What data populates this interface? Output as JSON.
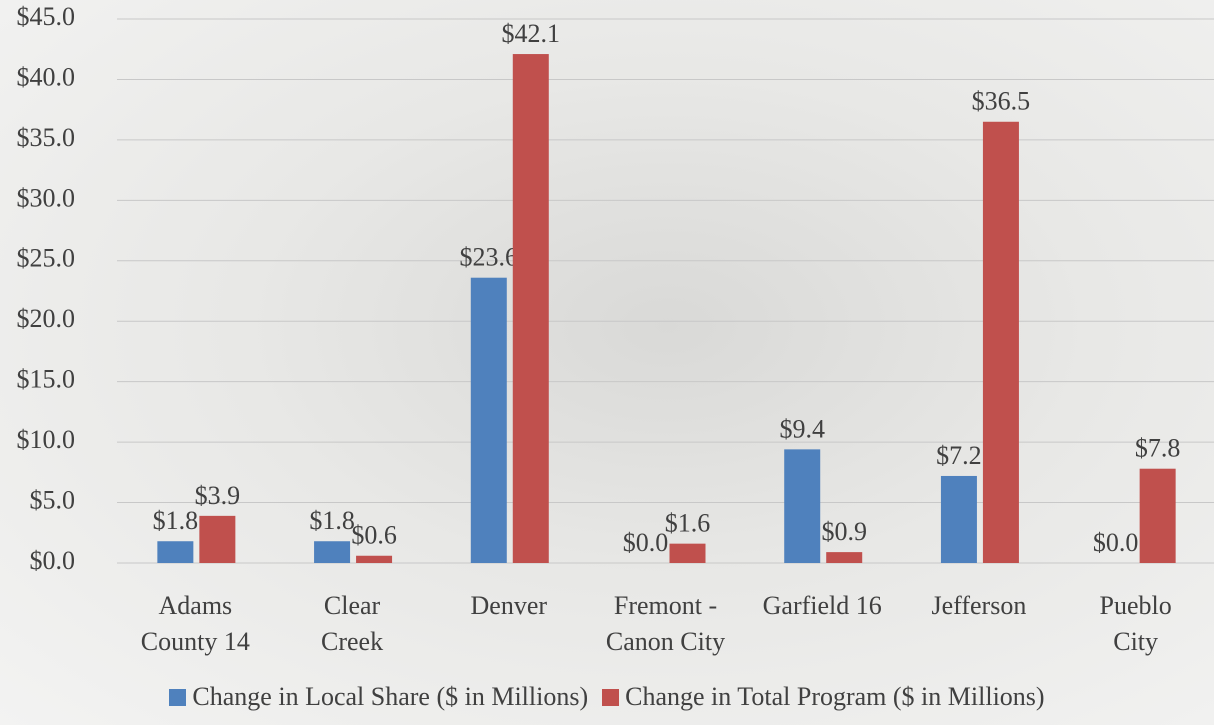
{
  "chart_data": {
    "type": "bar",
    "categories": [
      "Adams\nCounty 14",
      "Clear\nCreek",
      "Denver",
      "Fremont -\nCanon City",
      "Garfield 16",
      "Jefferson",
      "Pueblo\nCity"
    ],
    "series": [
      {
        "name": "Change in Local Share ($ in Millions)",
        "color": "#4f81bd",
        "values": [
          1.8,
          1.8,
          23.6,
          0.0,
          9.4,
          7.2,
          0.0
        ],
        "value_labels": [
          "$1.8",
          "$1.8",
          "$23.6",
          "$0.0",
          "$9.4",
          "$7.2",
          "$0.0"
        ]
      },
      {
        "name": "Change in Total Program ($ in Millions)",
        "color": "#c0504d",
        "values": [
          3.9,
          0.6,
          42.1,
          1.6,
          0.9,
          36.5,
          7.8
        ],
        "value_labels": [
          "$3.9",
          "$0.6",
          "$42.1",
          "$1.6",
          "$0.9",
          "$36.5",
          "$7.8"
        ]
      }
    ],
    "ylim": [
      0,
      45
    ],
    "yticks": [
      {
        "value": 0,
        "label": "$0.0"
      },
      {
        "value": 5,
        "label": "$5.0"
      },
      {
        "value": 10,
        "label": "$10.0"
      },
      {
        "value": 15,
        "label": "$15.0"
      },
      {
        "value": 20,
        "label": "$20.0"
      },
      {
        "value": 25,
        "label": "$25.0"
      },
      {
        "value": 30,
        "label": "$30.0"
      },
      {
        "value": 35,
        "label": "$35.0"
      },
      {
        "value": 40,
        "label": "$40.0"
      },
      {
        "value": 45,
        "label": "$45.0"
      }
    ],
    "grid": true
  }
}
